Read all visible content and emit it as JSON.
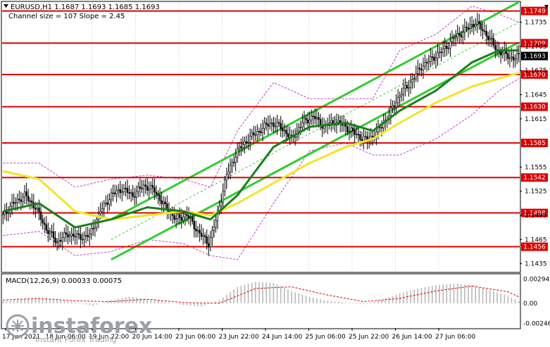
{
  "header": {
    "symbol_line": "EURUSD,H1  1.1687 1.1693 1.1685 1.1693",
    "channel_line": "Channel size = 107 Slope = 2.45"
  },
  "macd": {
    "label": "MACD(12,26,9) 0.00033 0.00075",
    "ticks": [
      "0.00294",
      "0.00",
      "-0.00246"
    ]
  },
  "watermark": {
    "brand": "instaforex",
    "tagline": "Instant Forex Trading"
  },
  "colors": {
    "level_line": "#e00000",
    "channel": "#33cc33",
    "ma_fast": "#1a7f1a",
    "ma_slow": "#f0e62a",
    "bollinger": "#c040c0",
    "candle": "#000000",
    "macd_hist": "#b8b8b8",
    "macd_signal": "#e00000"
  },
  "chart_data": {
    "type": "candlestick",
    "symbol": "EURUSD",
    "timeframe": "H1",
    "ohlc_last": {
      "open": 1.1687,
      "high": 1.1693,
      "low": 1.1685,
      "close": 1.1693
    },
    "channel_size": 107,
    "channel_slope": 2.45,
    "y_range": [
      1.1425,
      1.176
    ],
    "price_ticks": [
      "1.1735",
      "1.1705",
      "1.1675",
      "1.1645",
      "1.1615",
      "1.1555",
      "1.1525",
      "1.1495",
      "1.1465",
      "1.1435"
    ],
    "current_price": "1.1693",
    "levels": [
      "1.1749",
      "1.1709",
      "1.1670",
      "1.1630",
      "1.1585",
      "1.1542",
      "1.1498",
      "1.1456"
    ],
    "time_labels": [
      "17 Jun 2021",
      "18 Jun 06:00",
      "19 Jun 22:00",
      "20 Jun 14:00",
      "23 Jun 06:00",
      "23 Jun 22:00",
      "24 Jun 14:00",
      "25 Jun 06:00",
      "25 Jun 22:00",
      "26 Jun 14:00",
      "27 Jun 06:00"
    ],
    "price_path": [
      [
        0,
        1.1495
      ],
      [
        6,
        1.151
      ],
      [
        12,
        1.152
      ],
      [
        18,
        1.1505
      ],
      [
        24,
        1.1478
      ],
      [
        30,
        1.1462
      ],
      [
        36,
        1.1472
      ],
      [
        42,
        1.1468
      ],
      [
        48,
        1.147
      ],
      [
        54,
        1.15
      ],
      [
        60,
        1.152
      ],
      [
        66,
        1.1528
      ],
      [
        72,
        1.152
      ],
      [
        78,
        1.1532
      ],
      [
        84,
        1.1526
      ],
      [
        90,
        1.1505
      ],
      [
        96,
        1.149
      ],
      [
        102,
        1.1496
      ],
      [
        108,
        1.1475
      ],
      [
        114,
        1.146
      ],
      [
        118,
        1.1488
      ],
      [
        124,
        1.1545
      ],
      [
        130,
        1.1575
      ],
      [
        136,
        1.159
      ],
      [
        142,
        1.16
      ],
      [
        148,
        1.161
      ],
      [
        154,
        1.1605
      ],
      [
        160,
        1.159
      ],
      [
        166,
        1.161
      ],
      [
        172,
        1.1618
      ],
      [
        178,
        1.1605
      ],
      [
        184,
        1.1612
      ],
      [
        190,
        1.1605
      ],
      [
        196,
        1.1595
      ],
      [
        202,
        1.1588
      ],
      [
        208,
        1.16
      ],
      [
        214,
        1.162
      ],
      [
        220,
        1.1645
      ],
      [
        226,
        1.166
      ],
      [
        232,
        1.168
      ],
      [
        238,
        1.169
      ],
      [
        244,
        1.17
      ],
      [
        250,
        1.1715
      ],
      [
        256,
        1.1725
      ],
      [
        262,
        1.1735
      ],
      [
        268,
        1.172
      ],
      [
        274,
        1.17
      ],
      [
        280,
        1.1693
      ],
      [
        283,
        1.169
      ],
      [
        286,
        1.1693
      ]
    ],
    "ma_fast": [
      [
        0,
        1.15
      ],
      [
        20,
        1.151
      ],
      [
        40,
        1.148
      ],
      [
        60,
        1.149
      ],
      [
        80,
        1.1505
      ],
      [
        100,
        1.15
      ],
      [
        115,
        1.149
      ],
      [
        130,
        1.152
      ],
      [
        150,
        1.158
      ],
      [
        170,
        1.1605
      ],
      [
        190,
        1.161
      ],
      [
        205,
        1.16
      ],
      [
        220,
        1.1625
      ],
      [
        240,
        1.165
      ],
      [
        260,
        1.1685
      ],
      [
        275,
        1.17
      ],
      [
        286,
        1.17
      ]
    ],
    "ma_slow": [
      [
        0,
        1.155
      ],
      [
        20,
        1.154
      ],
      [
        40,
        1.15
      ],
      [
        60,
        1.149
      ],
      [
        80,
        1.1495
      ],
      [
        100,
        1.15
      ],
      [
        115,
        1.1495
      ],
      [
        130,
        1.151
      ],
      [
        150,
        1.1535
      ],
      [
        170,
        1.156
      ],
      [
        190,
        1.158
      ],
      [
        205,
        1.159
      ],
      [
        220,
        1.161
      ],
      [
        240,
        1.1635
      ],
      [
        260,
        1.1655
      ],
      [
        275,
        1.1665
      ],
      [
        286,
        1.1672
      ]
    ],
    "bb_upper": [
      [
        0,
        1.156
      ],
      [
        20,
        1.156
      ],
      [
        40,
        1.153
      ],
      [
        60,
        1.154
      ],
      [
        80,
        1.1545
      ],
      [
        100,
        1.154
      ],
      [
        115,
        1.153
      ],
      [
        130,
        1.16
      ],
      [
        150,
        1.166
      ],
      [
        170,
        1.164
      ],
      [
        190,
        1.164
      ],
      [
        205,
        1.164
      ],
      [
        220,
        1.17
      ],
      [
        240,
        1.172
      ],
      [
        260,
        1.1755
      ],
      [
        275,
        1.1745
      ],
      [
        286,
        1.1735
      ]
    ],
    "bb_lower": [
      [
        0,
        1.147
      ],
      [
        20,
        1.1475
      ],
      [
        40,
        1.1445
      ],
      [
        60,
        1.145
      ],
      [
        80,
        1.1465
      ],
      [
        100,
        1.146
      ],
      [
        115,
        1.1445
      ],
      [
        130,
        1.144
      ],
      [
        150,
        1.151
      ],
      [
        170,
        1.1575
      ],
      [
        190,
        1.1585
      ],
      [
        205,
        1.157
      ],
      [
        220,
        1.157
      ],
      [
        240,
        1.159
      ],
      [
        260,
        1.162
      ],
      [
        275,
        1.165
      ],
      [
        286,
        1.1665
      ]
    ],
    "channel": {
      "lower": [
        [
          60,
          1.144
        ],
        [
          286,
          1.171
        ]
      ],
      "upper": [
        [
          60,
          1.149
        ],
        [
          286,
          1.176
        ]
      ]
    },
    "macd_range": [
      -0.003,
      0.0035
    ],
    "macd_hist": [
      [
        0,
        0.0003
      ],
      [
        10,
        0.0005
      ],
      [
        20,
        0.0006
      ],
      [
        30,
        0.0004
      ],
      [
        40,
        0.0001
      ],
      [
        50,
        -0.0003
      ],
      [
        60,
        0.0004
      ],
      [
        70,
        0.0008
      ],
      [
        80,
        0.0005
      ],
      [
        90,
        0.0002
      ],
      [
        100,
        -0.0002
      ],
      [
        110,
        -0.0004
      ],
      [
        120,
        0.0004
      ],
      [
        130,
        0.002
      ],
      [
        140,
        0.0026
      ],
      [
        150,
        0.0025
      ],
      [
        160,
        0.0015
      ],
      [
        170,
        0.0008
      ],
      [
        180,
        0.0003
      ],
      [
        190,
        0.0001
      ],
      [
        200,
        -0.0001
      ],
      [
        210,
        0.0004
      ],
      [
        220,
        0.0012
      ],
      [
        230,
        0.0018
      ],
      [
        240,
        0.0022
      ],
      [
        250,
        0.0024
      ],
      [
        260,
        0.0022
      ],
      [
        270,
        0.0016
      ],
      [
        280,
        0.0009
      ],
      [
        286,
        0.0003
      ]
    ],
    "macd_signal": [
      [
        0,
        0.0004
      ],
      [
        20,
        0.0006
      ],
      [
        40,
        0.0003
      ],
      [
        60,
        0.0002
      ],
      [
        80,
        0.0005
      ],
      [
        100,
        0.0001
      ],
      [
        120,
        0.0
      ],
      [
        140,
        0.0018
      ],
      [
        160,
        0.002
      ],
      [
        180,
        0.001
      ],
      [
        200,
        0.0002
      ],
      [
        220,
        0.0006
      ],
      [
        240,
        0.0015
      ],
      [
        260,
        0.0021
      ],
      [
        280,
        0.0014
      ],
      [
        286,
        0.0008
      ]
    ]
  }
}
